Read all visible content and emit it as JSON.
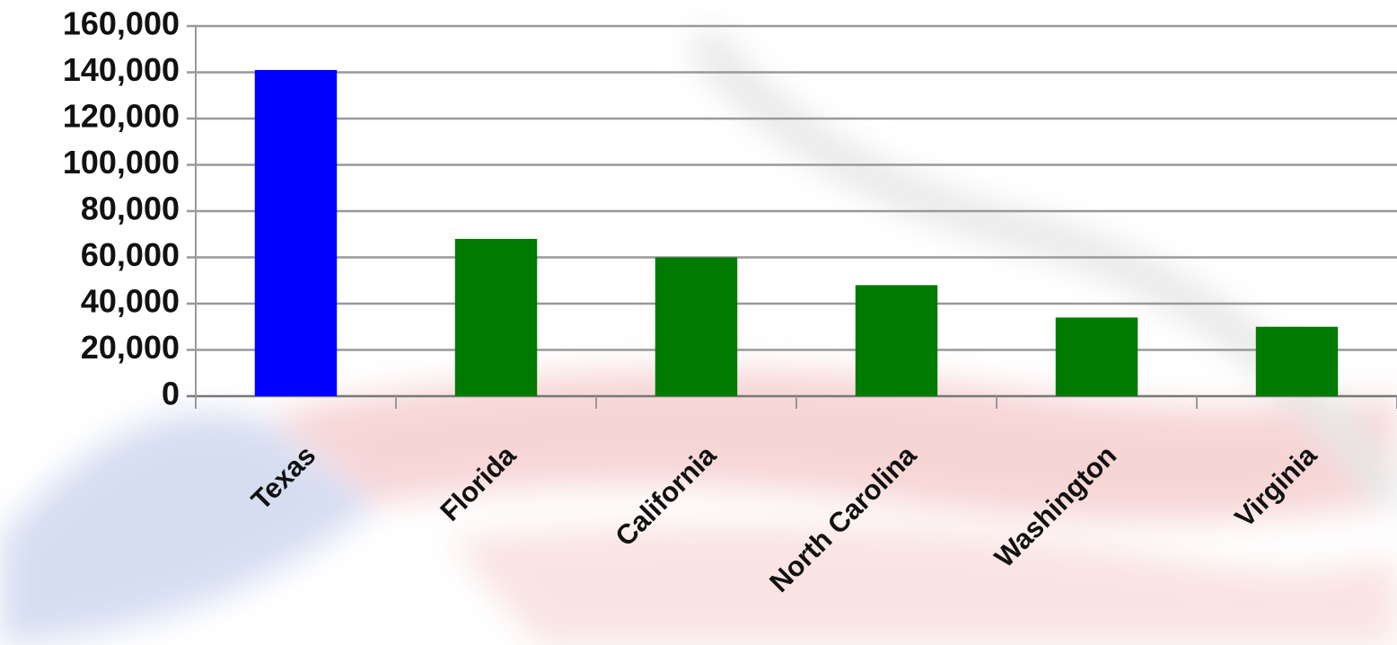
{
  "chart_data": {
    "type": "bar",
    "categories": [
      "Texas",
      "Florida",
      "California",
      "North Carolina",
      "Washington",
      "Virginia"
    ],
    "values": [
      141000,
      68000,
      60000,
      48000,
      34000,
      30000
    ],
    "colors": [
      "#0000ff",
      "#007a00",
      "#007a00",
      "#007a00",
      "#007a00",
      "#007a00"
    ],
    "ylim": [
      0,
      160000
    ],
    "yticks": [
      0,
      {
        "value": 20000,
        "label": "20,000"
      },
      {
        "value": 40000,
        "label": "40,000"
      },
      {
        "value": 60000,
        "label": "60,000"
      },
      {
        "value": 80000,
        "label": "80,000"
      },
      {
        "value": 100000,
        "label": "100,000"
      },
      {
        "value": 120000,
        "label": "120,000"
      },
      {
        "value": 140000,
        "label": "140,000"
      },
      {
        "value": 160000,
        "label": "160,000"
      }
    ],
    "grid": true
  }
}
